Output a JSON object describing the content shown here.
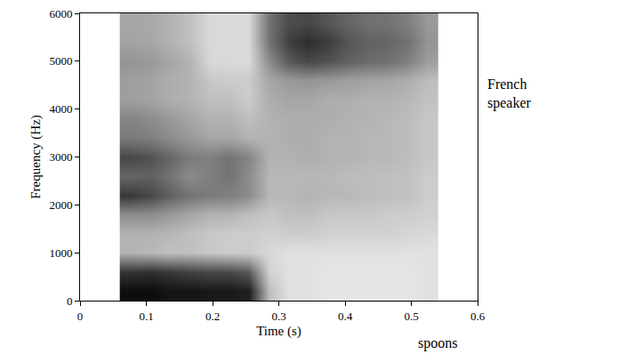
{
  "chart_data": {
    "type": "heatmap",
    "x_label": "Time (s)",
    "y_label": "Frequency (Hz)",
    "annotations": [
      "French speaker",
      "spoons"
    ],
    "xlim": [
      0,
      0.6
    ],
    "xticks": [
      0,
      0.1,
      0.2,
      0.3,
      0.4,
      0.5,
      0.6
    ],
    "ylim": [
      0,
      6000
    ],
    "yticks": [
      0,
      1000,
      2000,
      3000,
      4000,
      5000,
      6000
    ],
    "zlim": [
      0,
      100
    ],
    "grid": false,
    "x": [
      0.075,
      0.105,
      0.135,
      0.165,
      0.195,
      0.225,
      0.255,
      0.285,
      0.315,
      0.345,
      0.375,
      0.405,
      0.435,
      0.465,
      0.495,
      0.525
    ],
    "y": [
      200,
      600,
      1000,
      1400,
      1800,
      2200,
      2600,
      3000,
      3400,
      3800,
      4200,
      4600,
      5000,
      5400,
      5800
    ],
    "z": [
      [
        95,
        95,
        92,
        92,
        90,
        90,
        88,
        25,
        12,
        12,
        10,
        10,
        10,
        10,
        10,
        12
      ],
      [
        80,
        82,
        78,
        75,
        72,
        72,
        65,
        18,
        12,
        12,
        10,
        10,
        10,
        10,
        10,
        12
      ],
      [
        30,
        28,
        25,
        25,
        22,
        20,
        20,
        15,
        12,
        12,
        12,
        12,
        12,
        12,
        12,
        12
      ],
      [
        30,
        30,
        28,
        25,
        22,
        20,
        20,
        18,
        20,
        20,
        18,
        18,
        18,
        18,
        16,
        15
      ],
      [
        45,
        45,
        40,
        35,
        30,
        30,
        25,
        22,
        25,
        25,
        22,
        22,
        22,
        20,
        20,
        18
      ],
      [
        78,
        72,
        62,
        55,
        52,
        50,
        45,
        28,
        28,
        30,
        28,
        28,
        26,
        25,
        24,
        20
      ],
      [
        60,
        62,
        55,
        45,
        50,
        55,
        45,
        28,
        28,
        28,
        28,
        26,
        26,
        25,
        24,
        20
      ],
      [
        72,
        68,
        60,
        52,
        50,
        55,
        48,
        30,
        30,
        32,
        30,
        30,
        28,
        28,
        26,
        22
      ],
      [
        52,
        50,
        45,
        40,
        35,
        35,
        30,
        30,
        32,
        32,
        30,
        30,
        28,
        28,
        26,
        22
      ],
      [
        48,
        45,
        40,
        35,
        30,
        30,
        25,
        30,
        32,
        32,
        32,
        30,
        30,
        28,
        26,
        22
      ],
      [
        38,
        36,
        32,
        30,
        25,
        25,
        20,
        32,
        35,
        35,
        32,
        32,
        30,
        30,
        28,
        24
      ],
      [
        38,
        36,
        32,
        30,
        22,
        20,
        20,
        35,
        40,
        42,
        40,
        38,
        36,
        35,
        32,
        26
      ],
      [
        42,
        40,
        35,
        30,
        15,
        15,
        15,
        45,
        65,
        72,
        68,
        62,
        58,
        56,
        50,
        38
      ],
      [
        36,
        35,
        30,
        25,
        15,
        15,
        15,
        55,
        75,
        82,
        76,
        66,
        62,
        60,
        55,
        42
      ],
      [
        35,
        34,
        30,
        25,
        15,
        15,
        15,
        55,
        70,
        72,
        66,
        60,
        56,
        55,
        50,
        40
      ]
    ]
  }
}
